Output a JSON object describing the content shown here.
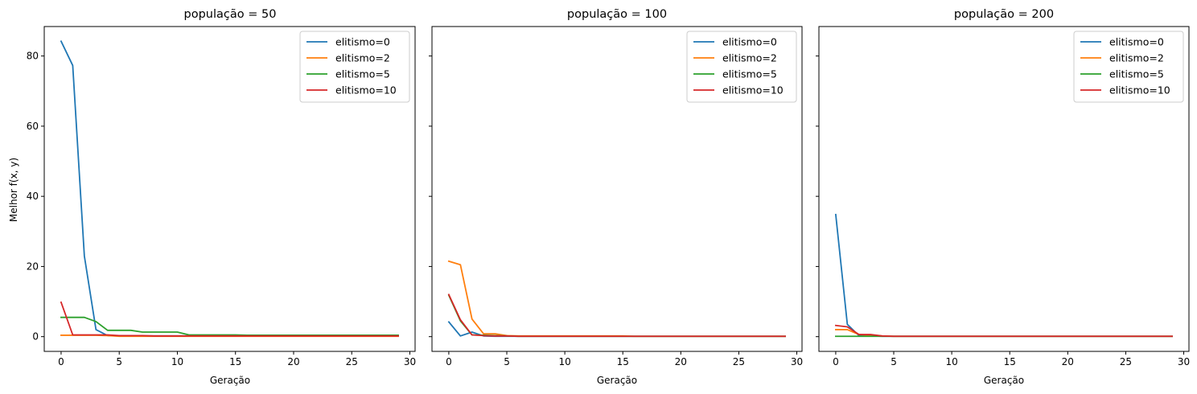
{
  "chart_data": [
    {
      "type": "line",
      "title": "população = 50",
      "xlabel": "Geração",
      "ylabel": "Melhor f(x, y)",
      "xlim": [
        -1.45,
        30.45
      ],
      "ylim": [
        -4.2,
        88.4
      ],
      "xticks": [
        0,
        5,
        10,
        15,
        20,
        25,
        30
      ],
      "yticks": [
        0,
        20,
        40,
        60,
        80
      ],
      "x": [
        0,
        1,
        2,
        3,
        4,
        5,
        6,
        7,
        8,
        9,
        10,
        11,
        12,
        13,
        14,
        15,
        16,
        17,
        18,
        19,
        20,
        21,
        22,
        23,
        24,
        25,
        26,
        27,
        28,
        29
      ],
      "legend_position": "upper right",
      "series": [
        {
          "name": "elitismo=0",
          "color": "#1f77b4",
          "values": [
            84.2,
            77.3,
            23.0,
            2.0,
            0.3,
            0.2,
            0.2,
            0.2,
            0.2,
            0.2,
            0.2,
            0.2,
            0.2,
            0.2,
            0.2,
            0.2,
            0.2,
            0.2,
            0.2,
            0.2,
            0.2,
            0.2,
            0.2,
            0.2,
            0.2,
            0.2,
            0.2,
            0.2,
            0.2,
            0.2
          ]
        },
        {
          "name": "elitismo=2",
          "color": "#ff7f0e",
          "values": [
            0.4,
            0.4,
            0.4,
            0.4,
            0.3,
            0.1,
            0.1,
            0.1,
            0.1,
            0.1,
            0.1,
            0.1,
            0.1,
            0.1,
            0.1,
            0.1,
            0.1,
            0.1,
            0.1,
            0.1,
            0.1,
            0.1,
            0.1,
            0.1,
            0.1,
            0.1,
            0.1,
            0.1,
            0.1,
            0.1
          ]
        },
        {
          "name": "elitismo=5",
          "color": "#2ca02c",
          "values": [
            5.5,
            5.5,
            5.5,
            4.3,
            1.8,
            1.8,
            1.8,
            1.3,
            1.3,
            1.3,
            1.3,
            0.5,
            0.5,
            0.5,
            0.5,
            0.5,
            0.4,
            0.4,
            0.4,
            0.4,
            0.4,
            0.4,
            0.4,
            0.4,
            0.4,
            0.4,
            0.4,
            0.4,
            0.4,
            0.4
          ]
        },
        {
          "name": "elitismo=10",
          "color": "#d62728",
          "values": [
            9.8,
            0.5,
            0.5,
            0.5,
            0.5,
            0.3,
            0.3,
            0.3,
            0.2,
            0.2,
            0.2,
            0.2,
            0.2,
            0.2,
            0.2,
            0.2,
            0.2,
            0.2,
            0.2,
            0.2,
            0.2,
            0.2,
            0.2,
            0.2,
            0.2,
            0.2,
            0.2,
            0.2,
            0.2,
            0.2
          ]
        }
      ]
    },
    {
      "type": "line",
      "title": "população = 100",
      "xlabel": "Geração",
      "ylabel": "",
      "xlim": [
        -1.45,
        30.45
      ],
      "ylim": [
        -4.2,
        88.4
      ],
      "xticks": [
        0,
        5,
        10,
        15,
        20,
        25,
        30
      ],
      "yticks": [
        0,
        20,
        40,
        60,
        80
      ],
      "x": [
        0,
        1,
        2,
        3,
        4,
        5,
        6,
        7,
        8,
        9,
        10,
        11,
        12,
        13,
        14,
        15,
        16,
        17,
        18,
        19,
        20,
        21,
        22,
        23,
        24,
        25,
        26,
        27,
        28,
        29
      ],
      "legend_position": "upper right",
      "series": [
        {
          "name": "elitismo=0",
          "color": "#1f77b4",
          "values": [
            4.2,
            0.2,
            1.3,
            0.2,
            0.1,
            0.1,
            0.1,
            0.1,
            0.1,
            0.1,
            0.1,
            0.1,
            0.1,
            0.1,
            0.1,
            0.1,
            0.1,
            0.1,
            0.1,
            0.1,
            0.1,
            0.1,
            0.1,
            0.1,
            0.1,
            0.1,
            0.1,
            0.1,
            0.1,
            0.1
          ]
        },
        {
          "name": "elitismo=2",
          "color": "#ff7f0e",
          "values": [
            21.5,
            20.5,
            5.0,
            0.8,
            0.8,
            0.3,
            0.2,
            0.2,
            0.2,
            0.2,
            0.2,
            0.2,
            0.2,
            0.2,
            0.2,
            0.2,
            0.1,
            0.1,
            0.1,
            0.1,
            0.1,
            0.1,
            0.1,
            0.1,
            0.1,
            0.1,
            0.1,
            0.1,
            0.1,
            0.1
          ]
        },
        {
          "name": "elitismo=5",
          "color": "#2ca02c",
          "values": [
            11.8,
            4.5,
            0.5,
            0.4,
            0.3,
            0.2,
            0.1,
            0.1,
            0.1,
            0.1,
            0.1,
            0.1,
            0.1,
            0.1,
            0.1,
            0.1,
            0.1,
            0.1,
            0.1,
            0.1,
            0.1,
            0.1,
            0.1,
            0.1,
            0.1,
            0.1,
            0.1,
            0.1,
            0.1,
            0.1
          ]
        },
        {
          "name": "elitismo=10",
          "color": "#d62728",
          "values": [
            12.0,
            4.8,
            0.5,
            0.3,
            0.2,
            0.2,
            0.1,
            0.1,
            0.1,
            0.1,
            0.1,
            0.1,
            0.1,
            0.1,
            0.1,
            0.1,
            0.1,
            0.1,
            0.1,
            0.1,
            0.1,
            0.1,
            0.1,
            0.1,
            0.1,
            0.1,
            0.1,
            0.1,
            0.1,
            0.1
          ]
        }
      ]
    },
    {
      "type": "line",
      "title": "população = 200",
      "xlabel": "Geração",
      "ylabel": "",
      "xlim": [
        -1.45,
        30.45
      ],
      "ylim": [
        -4.2,
        88.4
      ],
      "xticks": [
        0,
        5,
        10,
        15,
        20,
        25,
        30
      ],
      "yticks": [
        0,
        20,
        40,
        60,
        80
      ],
      "x": [
        0,
        1,
        2,
        3,
        4,
        5,
        6,
        7,
        8,
        9,
        10,
        11,
        12,
        13,
        14,
        15,
        16,
        17,
        18,
        19,
        20,
        21,
        22,
        23,
        24,
        25,
        26,
        27,
        28,
        29
      ],
      "legend_position": "upper right",
      "series": [
        {
          "name": "elitismo=0",
          "color": "#1f77b4",
          "values": [
            34.8,
            3.5,
            0.3,
            0.2,
            0.1,
            0.1,
            0.1,
            0.1,
            0.1,
            0.1,
            0.1,
            0.1,
            0.1,
            0.1,
            0.1,
            0.1,
            0.1,
            0.1,
            0.1,
            0.1,
            0.1,
            0.1,
            0.1,
            0.1,
            0.1,
            0.1,
            0.1,
            0.1,
            0.1,
            0.1
          ]
        },
        {
          "name": "elitismo=2",
          "color": "#ff7f0e",
          "values": [
            2.0,
            2.0,
            0.6,
            0.4,
            0.2,
            0.1,
            0.1,
            0.1,
            0.1,
            0.1,
            0.1,
            0.1,
            0.1,
            0.1,
            0.1,
            0.1,
            0.1,
            0.1,
            0.1,
            0.1,
            0.1,
            0.1,
            0.1,
            0.1,
            0.1,
            0.1,
            0.1,
            0.1,
            0.1,
            0.1
          ]
        },
        {
          "name": "elitismo=5",
          "color": "#2ca02c",
          "values": [
            0.1,
            0.1,
            0.1,
            0.1,
            0.1,
            0.1,
            0.1,
            0.1,
            0.1,
            0.1,
            0.1,
            0.1,
            0.1,
            0.1,
            0.1,
            0.1,
            0.1,
            0.1,
            0.1,
            0.1,
            0.1,
            0.1,
            0.1,
            0.1,
            0.1,
            0.1,
            0.1,
            0.1,
            0.1,
            0.1
          ]
        },
        {
          "name": "elitismo=10",
          "color": "#d62728",
          "values": [
            3.2,
            2.8,
            0.6,
            0.6,
            0.2,
            0.1,
            0.1,
            0.1,
            0.1,
            0.1,
            0.1,
            0.1,
            0.1,
            0.1,
            0.1,
            0.1,
            0.1,
            0.1,
            0.1,
            0.1,
            0.1,
            0.1,
            0.1,
            0.1,
            0.1,
            0.1,
            0.1,
            0.1,
            0.1,
            0.1
          ]
        }
      ]
    }
  ]
}
